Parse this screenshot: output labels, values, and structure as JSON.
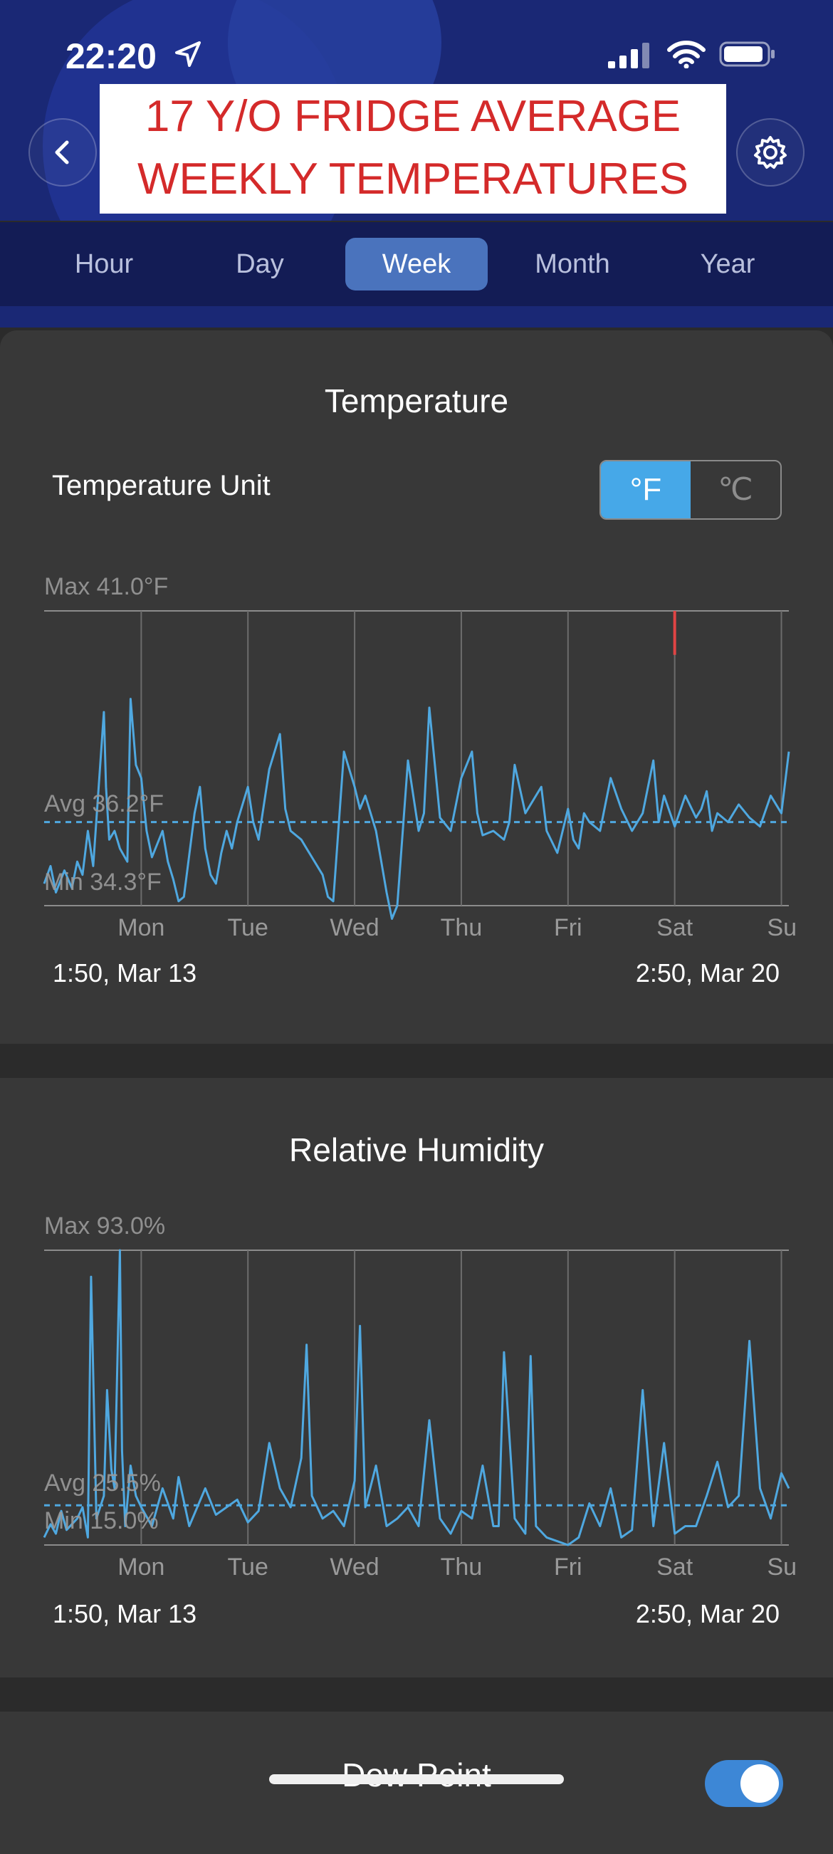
{
  "status_bar": {
    "time": "22:20"
  },
  "header": {
    "title_line1": "17 Y/O FRIDGE AVERAGE",
    "title_line2": "WEEKLY TEMPERATURES"
  },
  "tabs": [
    {
      "label": "Hour",
      "active": false
    },
    {
      "label": "Day",
      "active": false
    },
    {
      "label": "Week",
      "active": true
    },
    {
      "label": "Month",
      "active": false
    },
    {
      "label": "Year",
      "active": false
    }
  ],
  "colors": {
    "accent": "#46a8e8",
    "series": "#4fa8e0",
    "alert": "#e04444",
    "header": "#1a2875",
    "card": "#383838"
  },
  "temperature": {
    "title": "Temperature",
    "unit_label": "Temperature Unit",
    "unit_f": "°F",
    "unit_c": "℃",
    "selected_unit": "°F",
    "max_label": "Max 41.0°F",
    "avg_label": "Avg 36.2°F",
    "min_label": "Min 34.3°F",
    "start_label": "1:50,  Mar 13",
    "end_label": "2:50,  Mar 20"
  },
  "humidity": {
    "title": "Relative Humidity",
    "max_label": "Max 93.0%",
    "avg_label": "Avg 25.5%",
    "min_label": "Min 15.0%",
    "start_label": "1:50,  Mar 13",
    "end_label": "2:50,  Mar 20"
  },
  "dew_point": {
    "title": "Dew Point",
    "enabled": true
  },
  "chart_data": [
    {
      "type": "line",
      "title": "Temperature",
      "x_ticks": [
        "Mon",
        "Tue",
        "Wed",
        "Thu",
        "Fri",
        "Sat",
        "Su"
      ],
      "x_range": [
        -0.91,
        6.07
      ],
      "ylim": [
        34.3,
        41.0
      ],
      "max": 41.0,
      "avg": 36.2,
      "min": 34.3,
      "series": [
        {
          "x": [
            -0.91,
            -0.85,
            -0.8,
            -0.72,
            -0.65,
            -0.6,
            -0.55,
            -0.5,
            -0.45,
            -0.35,
            -0.33,
            -0.3,
            -0.25,
            -0.2,
            -0.13,
            -0.1,
            -0.05,
            0.0,
            0.05,
            0.1,
            0.2,
            0.25,
            0.3,
            0.35,
            0.4,
            0.5,
            0.55,
            0.6,
            0.65,
            0.7,
            0.75,
            0.8,
            0.85,
            0.9,
            1.0,
            1.05,
            1.1,
            1.2,
            1.3,
            1.35,
            1.4,
            1.5,
            1.55,
            1.6,
            1.7,
            1.75,
            1.8,
            1.9,
            2.0,
            2.05,
            2.1,
            2.2,
            2.3,
            2.35,
            2.4,
            2.5,
            2.55,
            2.6,
            2.65,
            2.7,
            2.8,
            2.9,
            3.0,
            3.1,
            3.15,
            3.2,
            3.3,
            3.4,
            3.45,
            3.5,
            3.6,
            3.7,
            3.75,
            3.8,
            3.9,
            4.0,
            4.05,
            4.1,
            4.15,
            4.2,
            4.3,
            4.4,
            4.5,
            4.6,
            4.7,
            4.8,
            4.85,
            4.9,
            5.0,
            5.1,
            5.2,
            5.25,
            5.3,
            5.35,
            5.4,
            5.5,
            5.6,
            5.7,
            5.8,
            5.9,
            6.0,
            6.07
          ],
          "values": [
            34.8,
            35.2,
            34.6,
            35.1,
            34.7,
            35.3,
            35.0,
            36.0,
            35.2,
            38.7,
            37.0,
            35.8,
            36.0,
            35.6,
            35.3,
            39.0,
            37.5,
            37.2,
            36.0,
            35.4,
            36.0,
            35.3,
            34.9,
            34.4,
            34.5,
            36.4,
            37.0,
            35.6,
            35.0,
            34.8,
            35.5,
            36.0,
            35.6,
            36.2,
            37.0,
            36.2,
            35.8,
            37.4,
            38.2,
            36.5,
            36.0,
            35.8,
            35.6,
            35.4,
            35.0,
            34.5,
            34.4,
            37.8,
            37.0,
            36.5,
            36.8,
            36.0,
            34.6,
            34.0,
            34.3,
            37.6,
            36.8,
            36.0,
            36.4,
            38.8,
            36.3,
            36.0,
            37.2,
            37.8,
            36.4,
            35.9,
            36.0,
            35.8,
            36.2,
            37.5,
            36.4,
            36.8,
            37.0,
            36.0,
            35.5,
            36.5,
            35.8,
            35.6,
            36.4,
            36.2,
            36.0,
            37.2,
            36.5,
            36.0,
            36.4,
            37.6,
            36.2,
            36.8,
            36.1,
            36.8,
            36.3,
            36.5,
            36.9,
            36.0,
            36.4,
            36.2,
            36.6,
            36.3,
            36.1,
            36.8,
            36.4,
            37.8
          ]
        }
      ],
      "alert_segment": {
        "x": 5.0,
        "from": 40.0,
        "to": 41.0
      }
    },
    {
      "type": "line",
      "title": "Relative Humidity",
      "x_ticks": [
        "Mon",
        "Tue",
        "Wed",
        "Thu",
        "Fri",
        "Sat",
        "Su"
      ],
      "x_range": [
        -0.91,
        6.07
      ],
      "ylim": [
        15.0,
        93.0
      ],
      "max": 93.0,
      "avg": 25.5,
      "min": 15.0,
      "series": [
        {
          "x": [
            -0.91,
            -0.85,
            -0.8,
            -0.75,
            -0.7,
            -0.6,
            -0.55,
            -0.5,
            -0.47,
            -0.42,
            -0.35,
            -0.32,
            -0.28,
            -0.25,
            -0.2,
            -0.18,
            -0.15,
            -0.1,
            -0.05,
            0.0,
            0.1,
            0.2,
            0.3,
            0.35,
            0.45,
            0.6,
            0.7,
            0.8,
            0.9,
            1.0,
            1.1,
            1.2,
            1.3,
            1.4,
            1.5,
            1.55,
            1.6,
            1.7,
            1.8,
            1.9,
            2.0,
            2.05,
            2.1,
            2.2,
            2.3,
            2.4,
            2.5,
            2.6,
            2.7,
            2.8,
            2.9,
            3.0,
            3.1,
            3.2,
            3.3,
            3.35,
            3.4,
            3.5,
            3.6,
            3.65,
            3.7,
            3.8,
            3.9,
            4.0,
            4.1,
            4.2,
            4.3,
            4.4,
            4.5,
            4.6,
            4.7,
            4.8,
            4.9,
            5.0,
            5.1,
            5.2,
            5.25,
            5.3,
            5.4,
            5.5,
            5.6,
            5.7,
            5.8,
            5.9,
            6.0,
            6.07
          ],
          "values": [
            17.0,
            20.5,
            18.0,
            24.0,
            19.0,
            22.0,
            25.0,
            17.0,
            86.0,
            22.0,
            28.0,
            56.0,
            35.0,
            30.0,
            93.0,
            40.0,
            20.0,
            36.0,
            28.0,
            25.0,
            20.0,
            30.0,
            22.0,
            33.0,
            20.0,
            30.0,
            23.0,
            25.0,
            27.0,
            21.0,
            24.0,
            42.0,
            30.0,
            25.0,
            38.0,
            68.0,
            28.0,
            22.0,
            24.0,
            20.0,
            32.0,
            73.0,
            25.0,
            36.0,
            20.0,
            22.0,
            25.0,
            20.0,
            48.0,
            22.0,
            18.0,
            24.0,
            22.0,
            36.0,
            20.0,
            20.0,
            66.0,
            22.0,
            18.0,
            65.0,
            20.0,
            17.0,
            16.0,
            15.0,
            17.0,
            26.0,
            20.0,
            30.0,
            17.0,
            19.0,
            56.0,
            20.0,
            42.0,
            18.0,
            20.0,
            20.0,
            24.0,
            28.0,
            37.0,
            25.0,
            28.0,
            69.0,
            30.0,
            22.0,
            34.0,
            30.0
          ]
        }
      ]
    }
  ]
}
